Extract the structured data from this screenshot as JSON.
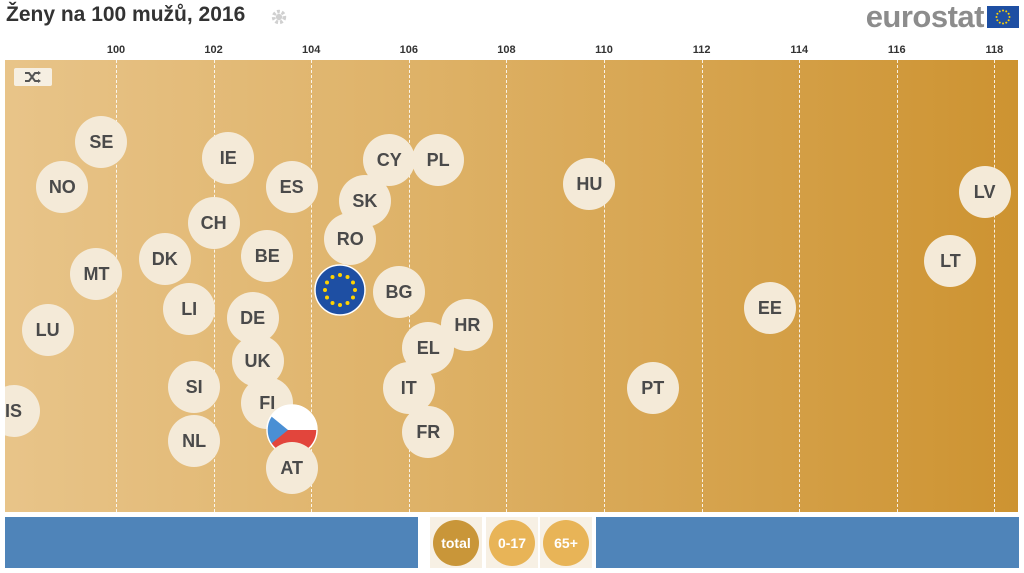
{
  "header": {
    "title": "Ženy na 100 mužů, 2016",
    "brand": "eurostat"
  },
  "chart_data": {
    "type": "scatter",
    "title": "Ženy na 100 mužů, 2016",
    "x_ticks": [
      "100",
      "102",
      "104",
      "106",
      "108",
      "110",
      "112",
      "114",
      "116",
      "118"
    ],
    "xlim": [
      99.0,
      118.4
    ],
    "points": [
      {
        "label": "SE",
        "x": 99.7
      },
      {
        "label": "NO",
        "x": 98.9
      },
      {
        "label": "IE",
        "x": 102.3
      },
      {
        "label": "ES",
        "x": 103.6
      },
      {
        "label": "CY",
        "x": 105.6
      },
      {
        "label": "PL",
        "x": 106.6
      },
      {
        "label": "SK",
        "x": 105.1
      },
      {
        "label": "HU",
        "x": 109.7
      },
      {
        "label": "LV",
        "x": 117.8
      },
      {
        "label": "CH",
        "x": 102.0
      },
      {
        "label": "RO",
        "x": 104.8
      },
      {
        "label": "DK",
        "x": 101.0
      },
      {
        "label": "BE",
        "x": 103.1
      },
      {
        "label": "MT",
        "x": 99.6
      },
      {
        "label": "LT",
        "x": 117.1
      },
      {
        "label": "BG",
        "x": 105.8
      },
      {
        "label": "EU",
        "x": 104.6
      },
      {
        "label": "LI",
        "x": 101.5
      },
      {
        "label": "DE",
        "x": 102.8
      },
      {
        "label": "EE",
        "x": 113.4
      },
      {
        "label": "HR",
        "x": 107.2
      },
      {
        "label": "LU",
        "x": 98.6
      },
      {
        "label": "EL",
        "x": 106.4
      },
      {
        "label": "UK",
        "x": 102.9
      },
      {
        "label": "SI",
        "x": 101.6
      },
      {
        "label": "IT",
        "x": 106.0
      },
      {
        "label": "PT",
        "x": 111.0
      },
      {
        "label": "FI",
        "x": 103.1
      },
      {
        "label": "CZ",
        "x": 103.6
      },
      {
        "label": "IS",
        "x": 97.9
      },
      {
        "label": "NL",
        "x": 101.6
      },
      {
        "label": "FR",
        "x": 106.4
      },
      {
        "label": "AT",
        "x": 103.6
      }
    ],
    "grid": true
  },
  "controls": {
    "buttons": [
      "total",
      "0-17",
      "65+"
    ],
    "active": "total",
    "colors": {
      "active": "#c99639",
      "inactive": "#e8b457",
      "bar": "#4f84b9"
    }
  }
}
